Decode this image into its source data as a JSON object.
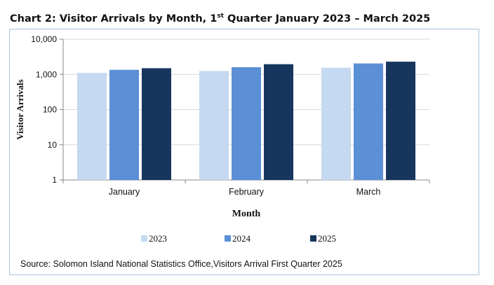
{
  "title": {
    "prefix": "Chart 2: Visitor Arrivals by Month, 1",
    "superscript": "st",
    "suffix": " Quarter January 2023 – March 2025"
  },
  "source": "Source: Solomon Island National Statistics Office,Visitors Arrival First Quarter 2025",
  "chart_data": {
    "type": "bar",
    "categories": [
      "January",
      "February",
      "March"
    ],
    "series": [
      {
        "name": "2023",
        "color": "#c5d9f0",
        "values": [
          1100,
          1250,
          1550
        ]
      },
      {
        "name": "2024",
        "color": "#5b8fd6",
        "values": [
          1350,
          1600,
          2050
        ]
      },
      {
        "name": "2025",
        "color": "#17365d",
        "values": [
          1500,
          1950,
          2300
        ]
      }
    ],
    "xlabel": "Month",
    "ylabel": "Visitor Arrivals",
    "y_scale": "log",
    "ylim": [
      1,
      10000
    ],
    "y_ticks": [
      1,
      10,
      100,
      1000,
      10000
    ],
    "y_tick_labels": [
      "1",
      "10",
      "100",
      "1,000",
      "10,000"
    ],
    "grid": true,
    "legend_position": "bottom"
  }
}
